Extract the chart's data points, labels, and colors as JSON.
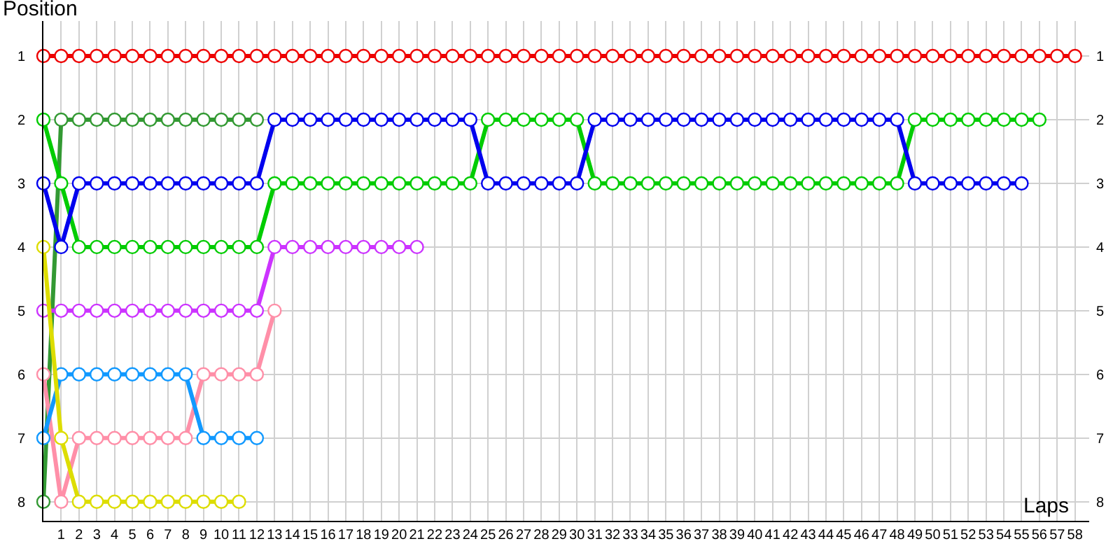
{
  "chart_data": {
    "type": "line",
    "xlabel": "Laps",
    "ylabel": "Position",
    "x": [
      0,
      1,
      2,
      3,
      4,
      5,
      6,
      7,
      8,
      9,
      10,
      11,
      12,
      13,
      14,
      15,
      16,
      17,
      18,
      19,
      20,
      21,
      22,
      23,
      24,
      25,
      26,
      27,
      28,
      29,
      30,
      31,
      32,
      33,
      34,
      35,
      36,
      37,
      38,
      39,
      40,
      41,
      42,
      43,
      44,
      45,
      46,
      47,
      48,
      49,
      50,
      51,
      52,
      53,
      54,
      55,
      56,
      57,
      58
    ],
    "series": [
      {
        "color": "#ee0000",
        "values": [
          1,
          1,
          1,
          1,
          1,
          1,
          1,
          1,
          1,
          1,
          1,
          1,
          1,
          1,
          1,
          1,
          1,
          1,
          1,
          1,
          1,
          1,
          1,
          1,
          1,
          1,
          1,
          1,
          1,
          1,
          1,
          1,
          1,
          1,
          1,
          1,
          1,
          1,
          1,
          1,
          1,
          1,
          1,
          1,
          1,
          1,
          1,
          1,
          1,
          1,
          1,
          1,
          1,
          1,
          1,
          1,
          1,
          1,
          1
        ]
      },
      {
        "color": "#339933",
        "values": [
          8,
          2,
          2,
          2,
          2,
          2,
          2,
          2,
          2,
          2,
          2,
          2,
          2,
          null,
          null,
          null,
          null,
          null,
          null,
          null,
          null,
          null,
          null,
          null,
          null,
          null,
          null,
          null,
          null,
          null,
          null,
          null,
          null,
          null,
          null,
          null,
          null,
          null,
          null,
          null,
          null,
          null,
          null,
          null,
          null,
          null,
          null,
          null,
          null,
          null,
          null,
          null,
          null,
          null,
          null,
          null,
          null,
          null,
          null
        ]
      },
      {
        "color": "#00cc00",
        "values": [
          2,
          3,
          4,
          4,
          4,
          4,
          4,
          4,
          4,
          4,
          4,
          4,
          4,
          3,
          3,
          3,
          3,
          3,
          3,
          3,
          3,
          3,
          3,
          3,
          3,
          2,
          2,
          2,
          2,
          2,
          2,
          3,
          3,
          3,
          3,
          3,
          3,
          3,
          3,
          3,
          3,
          3,
          3,
          3,
          3,
          3,
          3,
          3,
          3,
          2,
          2,
          2,
          2,
          2,
          2,
          2,
          2,
          null,
          null
        ]
      },
      {
        "color": "#0000ee",
        "values": [
          3,
          4,
          3,
          3,
          3,
          3,
          3,
          3,
          3,
          3,
          3,
          3,
          3,
          2,
          2,
          2,
          2,
          2,
          2,
          2,
          2,
          2,
          2,
          2,
          2,
          3,
          3,
          3,
          3,
          3,
          3,
          2,
          2,
          2,
          2,
          2,
          2,
          2,
          2,
          2,
          2,
          2,
          2,
          2,
          2,
          2,
          2,
          2,
          2,
          3,
          3,
          3,
          3,
          3,
          3,
          3,
          null,
          null,
          null
        ]
      },
      {
        "color": "#cc33ff",
        "values": [
          5,
          5,
          5,
          5,
          5,
          5,
          5,
          5,
          5,
          5,
          5,
          5,
          5,
          4,
          4,
          4,
          4,
          4,
          4,
          4,
          4,
          4,
          null,
          null,
          null,
          null,
          null,
          null,
          null,
          null,
          null,
          null,
          null,
          null,
          null,
          null,
          null,
          null,
          null,
          null,
          null,
          null,
          null,
          null,
          null,
          null,
          null,
          null,
          null,
          null,
          null,
          null,
          null,
          null,
          null,
          null,
          null,
          null,
          null
        ]
      },
      {
        "color": "#ff8fa8",
        "values": [
          6,
          8,
          7,
          7,
          7,
          7,
          7,
          7,
          7,
          6,
          6,
          6,
          6,
          5,
          null,
          null,
          null,
          null,
          null,
          null,
          null,
          null,
          null,
          null,
          null,
          null,
          null,
          null,
          null,
          null,
          null,
          null,
          null,
          null,
          null,
          null,
          null,
          null,
          null,
          null,
          null,
          null,
          null,
          null,
          null,
          null,
          null,
          null,
          null,
          null,
          null,
          null,
          null,
          null,
          null,
          null,
          null,
          null,
          null
        ]
      },
      {
        "color": "#1199ff",
        "values": [
          7,
          6,
          6,
          6,
          6,
          6,
          6,
          6,
          6,
          7,
          7,
          7,
          7,
          null,
          null,
          null,
          null,
          null,
          null,
          null,
          null,
          null,
          null,
          null,
          null,
          null,
          null,
          null,
          null,
          null,
          null,
          null,
          null,
          null,
          null,
          null,
          null,
          null,
          null,
          null,
          null,
          null,
          null,
          null,
          null,
          null,
          null,
          null,
          null,
          null,
          null,
          null,
          null,
          null,
          null,
          null,
          null,
          null,
          null
        ]
      },
      {
        "color": "#dddd00",
        "values": [
          4,
          7,
          8,
          8,
          8,
          8,
          8,
          8,
          8,
          8,
          8,
          8,
          null,
          null,
          null,
          null,
          null,
          null,
          null,
          null,
          null,
          null,
          null,
          null,
          null,
          null,
          null,
          null,
          null,
          null,
          null,
          null,
          null,
          null,
          null,
          null,
          null,
          null,
          null,
          null,
          null,
          null,
          null,
          null,
          null,
          null,
          null,
          null,
          null,
          null,
          null,
          null,
          null,
          null,
          null,
          null,
          null,
          null,
          null
        ]
      }
    ],
    "xlim": [
      0,
      58.8
    ],
    "xticks": [
      1,
      2,
      3,
      4,
      5,
      6,
      7,
      8,
      9,
      10,
      11,
      12,
      13,
      14,
      15,
      16,
      17,
      18,
      19,
      20,
      21,
      22,
      23,
      24,
      25,
      26,
      27,
      28,
      29,
      30,
      31,
      32,
      33,
      34,
      35,
      36,
      37,
      38,
      39,
      40,
      41,
      42,
      43,
      44,
      45,
      46,
      47,
      48,
      49,
      50,
      51,
      52,
      53,
      54,
      55,
      56,
      57,
      58
    ],
    "ylim": [
      8.3,
      0.45
    ],
    "yticks": [
      1,
      2,
      3,
      4,
      5,
      6,
      7,
      8
    ],
    "y2lim": [
      8.3,
      0.45
    ],
    "y2ticks": [
      1,
      2,
      3,
      4,
      5,
      6,
      7,
      8
    ],
    "grid": true,
    "marker": "circle",
    "line_style": "solid"
  }
}
